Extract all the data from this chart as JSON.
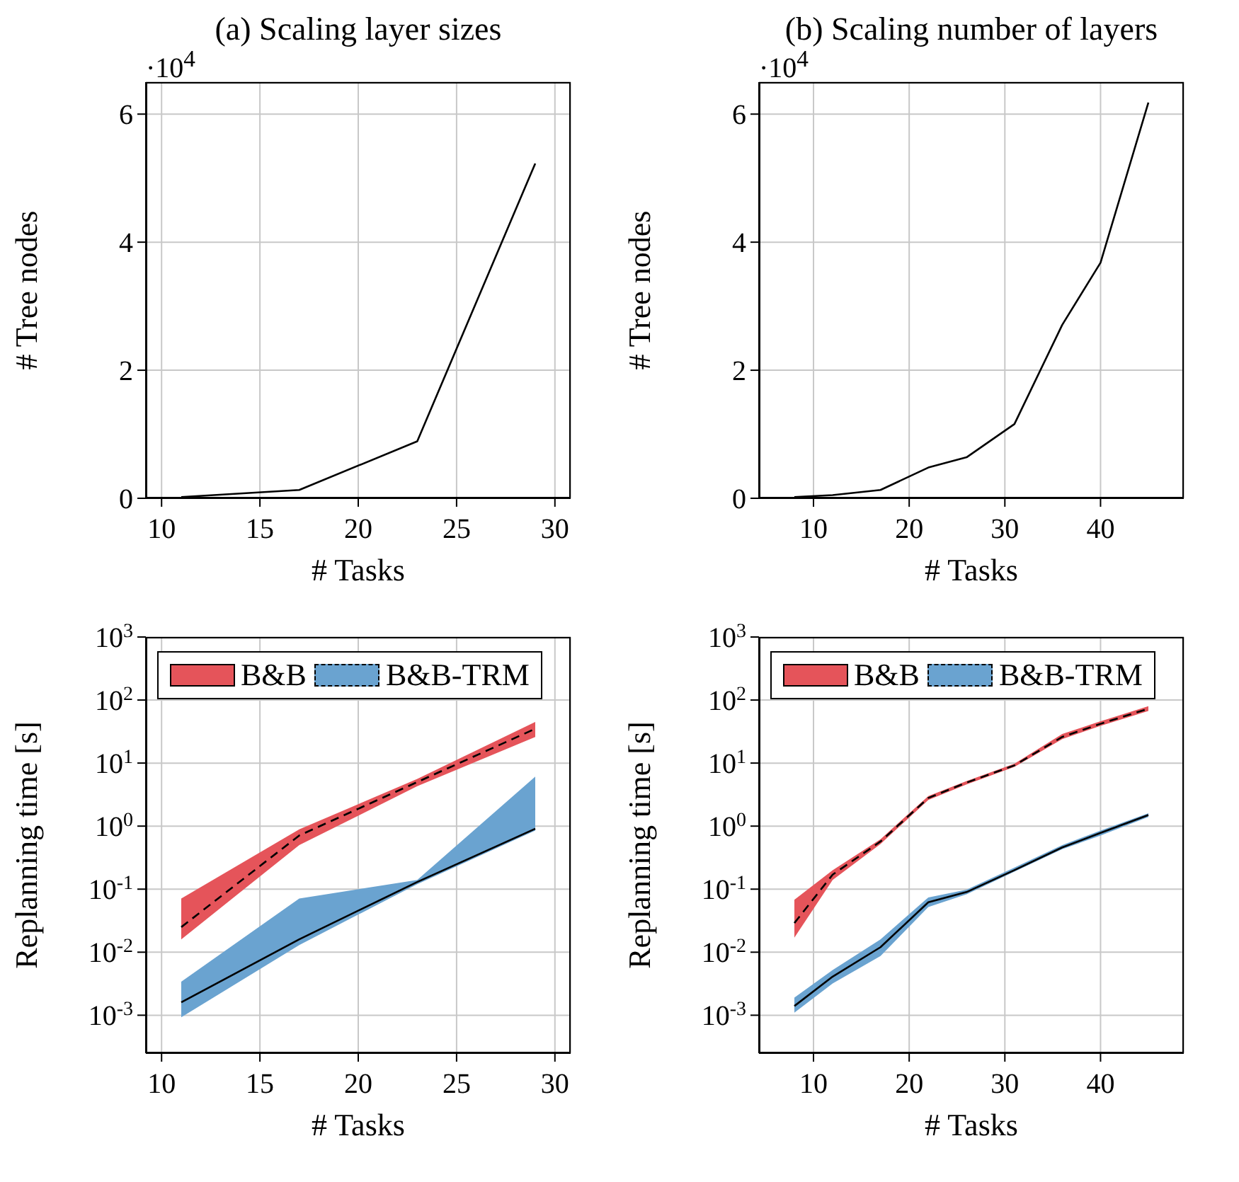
{
  "chart_data": [
    {
      "type": "line",
      "title": "(a) Scaling layer sizes",
      "xlabel": "# Tasks",
      "ylabel": "# Tree nodes",
      "annotations": [
        "·10$^{4}$"
      ],
      "x": [
        11,
        17,
        23,
        29
      ],
      "xlim": [
        9.2,
        30.8
      ],
      "xticks": [
        10,
        15,
        20,
        25,
        30
      ],
      "ylim": [
        0,
        6.5
      ],
      "yticks": [
        0,
        2,
        4,
        6
      ],
      "grid": true,
      "legend": false,
      "series": [
        {
          "color": "#000000",
          "values": [
            0.02,
            0.13,
            0.89,
            5.23
          ]
        }
      ]
    },
    {
      "type": "line",
      "title": "(b) Scaling number of layers",
      "xlabel": "# Tasks",
      "ylabel": "# Tree nodes",
      "annotations": [
        "·10$^{4}$"
      ],
      "x": [
        8,
        12,
        17,
        22,
        26,
        31,
        36,
        40,
        45
      ],
      "xlim": [
        4.3,
        48.7
      ],
      "xticks": [
        10,
        20,
        30,
        40
      ],
      "ylim": [
        0,
        6.5
      ],
      "yticks": [
        0,
        2,
        4,
        6
      ],
      "grid": true,
      "legend": false,
      "series": [
        {
          "color": "#000000",
          "values": [
            0.02,
            0.05,
            0.13,
            0.48,
            0.64,
            1.16,
            2.71,
            3.68,
            6.18
          ]
        }
      ]
    },
    {
      "type": "line",
      "xlabel": "# Tasks",
      "ylabel": "Replanning time [s]",
      "log": true,
      "x": [
        11,
        17,
        23,
        29
      ],
      "xlim": [
        9.2,
        30.8
      ],
      "xticks": [
        10,
        15,
        20,
        25,
        30
      ],
      "ylim": [
        0.00025,
        1000
      ],
      "yticks": [
        {
          "value": 0.001,
          "label": "10$^{-3}$"
        },
        {
          "value": 0.01,
          "label": "10$^{-2}$"
        },
        {
          "value": 0.1,
          "label": "10$^{-1}$"
        },
        {
          "value": 1,
          "label": "10$^{0}$"
        },
        {
          "value": 10,
          "label": "10$^{1}$"
        },
        {
          "value": 100,
          "label": "10$^{2}$"
        },
        {
          "value": 1000,
          "label": "10$^{3}$"
        }
      ],
      "grid": true,
      "legend": "top",
      "series": [
        {
          "name": "B&B",
          "color": "#e5545a",
          "line_style": "solid",
          "values": [
            null,
            null,
            null,
            null
          ],
          "lower": [
            0.016,
            0.5,
            4.3,
            26
          ],
          "upper": [
            0.071,
            0.89,
            5.6,
            45
          ]
        },
        {
          "name": "B&B-TRM",
          "color": "#6aa3d0",
          "line_style": "dashed",
          "values": [
            null,
            null,
            null,
            null
          ],
          "lower": [
            0.00093,
            0.013,
            0.12,
            0.85
          ],
          "upper": [
            0.0034,
            0.071,
            0.14,
            6.1
          ]
        },
        {
          "color": "#000000",
          "line_style": "dashed",
          "values": [
            0.025,
            0.71,
            5.0,
            35
          ]
        },
        {
          "color": "#000000",
          "line_style": "solid",
          "values": [
            0.0016,
            0.016,
            0.13,
            0.91
          ]
        }
      ]
    },
    {
      "type": "line",
      "xlabel": "# Tasks",
      "ylabel": "Replanning time [s]",
      "log": true,
      "x": [
        8,
        12,
        17,
        22,
        26,
        31,
        36,
        40,
        45
      ],
      "xlim": [
        4.3,
        48.7
      ],
      "xticks": [
        10,
        20,
        30,
        40
      ],
      "ylim": [
        0.00025,
        1000
      ],
      "yticks": [
        {
          "value": 0.001,
          "label": "10$^{-3}$"
        },
        {
          "value": 0.01,
          "label": "10$^{-2}$"
        },
        {
          "value": 0.1,
          "label": "10$^{-1}$"
        },
        {
          "value": 1,
          "label": "10$^{0}$"
        },
        {
          "value": 10,
          "label": "10$^{1}$"
        },
        {
          "value": 100,
          "label": "10$^{2}$"
        },
        {
          "value": 1000,
          "label": "10$^{3}$"
        }
      ],
      "grid": true,
      "legend": "top",
      "series": [
        {
          "name": "B&B",
          "color": "#e5545a",
          "line_style": "solid",
          "values": [
            null,
            null,
            null,
            null,
            null,
            null,
            null,
            null,
            null
          ],
          "lower": [
            0.017,
            0.14,
            0.52,
            2.6,
            4.6,
            8.7,
            24,
            39,
            67
          ],
          "upper": [
            0.068,
            0.2,
            0.62,
            3.0,
            5.2,
            9.8,
            29,
            46,
            80
          ]
        },
        {
          "name": "B&B-TRM",
          "color": "#6aa3d0",
          "line_style": "dashed",
          "values": [
            null,
            null,
            null,
            null,
            null,
            null,
            null,
            null,
            null
          ],
          "lower": [
            0.0011,
            0.0032,
            0.0087,
            0.052,
            0.083,
            0.19,
            0.43,
            0.71,
            1.4
          ],
          "upper": [
            0.0019,
            0.0052,
            0.016,
            0.074,
            0.098,
            0.22,
            0.5,
            0.85,
            1.6
          ]
        },
        {
          "color": "#000000",
          "line_style": "dashed",
          "values": [
            0.029,
            0.17,
            0.57,
            2.8,
            4.9,
            9.2,
            26,
            42,
            73
          ]
        },
        {
          "color": "#000000",
          "line_style": "solid",
          "values": [
            0.0014,
            0.0041,
            0.012,
            0.062,
            0.09,
            0.2,
            0.46,
            0.78,
            1.5
          ]
        }
      ]
    }
  ]
}
